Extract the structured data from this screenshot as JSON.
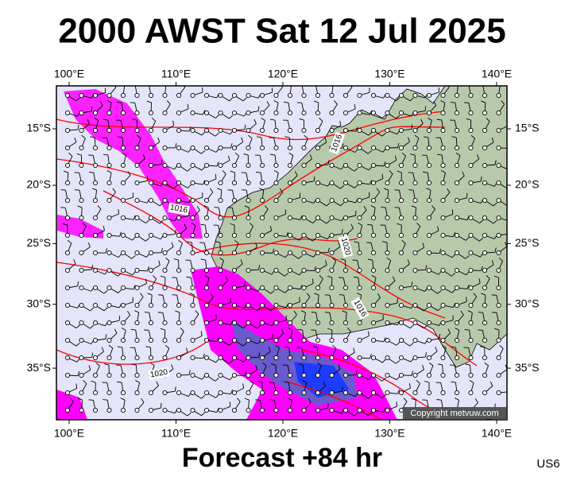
{
  "header": {
    "title": "2000 AWST Sat 12 Jul 2025"
  },
  "map": {
    "lon_ticks": [
      {
        "value": 100,
        "label": "100°E"
      },
      {
        "value": 110,
        "label": "110°E"
      },
      {
        "value": 120,
        "label": "120°E"
      },
      {
        "value": 130,
        "label": "130°E"
      },
      {
        "value": 140,
        "label": "140°E"
      }
    ],
    "lat_ticks": [
      {
        "value": -15,
        "label": "15°S"
      },
      {
        "value": -20,
        "label": "20°S"
      },
      {
        "value": -25,
        "label": "25°S"
      },
      {
        "value": -30,
        "label": "30°S"
      },
      {
        "value": -35,
        "label": "35°S"
      }
    ],
    "isobar_labels": [
      "1016",
      "1016",
      "1020",
      "1016",
      "1020"
    ],
    "copyright": "Copyright metvuw.com"
  },
  "footer": {
    "forecast": "Forecast +84 hr",
    "code": "US6"
  }
}
